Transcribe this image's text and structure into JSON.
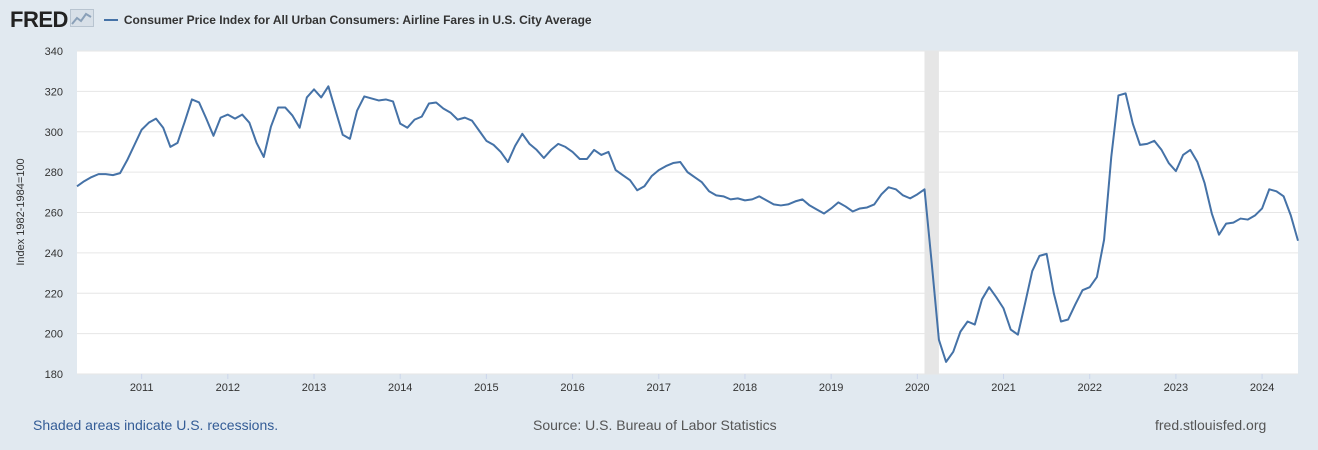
{
  "brand": {
    "logo_text": "FRED"
  },
  "legend": {
    "series_label": "Consumer Price Index for All Urban Consumers: Airline Fares in U.S. City Average"
  },
  "footer": {
    "recession_note": "Shaded areas indicate U.S. recessions.",
    "source": "Source: U.S. Bureau of Labor Statistics",
    "site": "fred.stlouisfed.org"
  },
  "colors": {
    "series": "#4572a7",
    "background": "#e1e9f0",
    "plot_bg": "#ffffff",
    "grid": "#e6e6e6",
    "recession": "#e6e6e6"
  },
  "chart_data": {
    "type": "line",
    "title": "Consumer Price Index for All Urban Consumers: Airline Fares in U.S. City Average",
    "ylabel": "Index 1982-1984=100",
    "xlabel": "",
    "ylim": [
      180,
      340
    ],
    "yticks": [
      180,
      200,
      220,
      240,
      260,
      280,
      300,
      320,
      340
    ],
    "xlim": [
      "2010-04",
      "2024-06"
    ],
    "xticks": [
      "2011",
      "2012",
      "2013",
      "2014",
      "2015",
      "2016",
      "2017",
      "2018",
      "2019",
      "2020",
      "2021",
      "2022",
      "2023",
      "2024"
    ],
    "grid": true,
    "legend_position": "top-left",
    "recessions": [
      {
        "start": "2020-02",
        "end": "2020-04"
      }
    ],
    "series": [
      {
        "name": "Consumer Price Index for All Urban Consumers: Airline Fares in U.S. City Average",
        "x_start": "2010-04",
        "frequency": "monthly",
        "values": [
          273,
          275.5,
          277.5,
          279,
          279,
          278.5,
          279.5,
          286,
          293.5,
          301,
          304.5,
          306.5,
          302,
          292.5,
          294.5,
          305,
          316,
          314.5,
          306.5,
          298,
          307,
          308.5,
          306.5,
          308.5,
          304.5,
          294.5,
          287.5,
          302.5,
          312,
          312,
          308,
          302,
          317,
          321,
          317,
          322.5,
          310.5,
          298.5,
          296.5,
          310.5,
          317.5,
          316.5,
          315.5,
          316,
          315,
          304,
          302,
          306,
          307.5,
          314,
          314.5,
          311.5,
          309.5,
          306,
          307,
          305.5,
          300.5,
          295.5,
          293.5,
          290,
          285,
          293,
          299,
          294,
          291,
          287,
          291,
          294,
          292.5,
          290,
          286.5,
          286.5,
          291,
          288.5,
          290,
          281,
          278.5,
          276,
          271,
          273,
          278,
          281,
          283,
          284.5,
          285,
          280,
          277.5,
          275,
          270.5,
          268.5,
          268,
          266.5,
          267,
          266,
          266.5,
          268,
          266,
          264,
          263.5,
          264,
          265.5,
          266.5,
          263.5,
          261.5,
          259.5,
          262,
          265,
          263,
          260.5,
          262,
          262.5,
          264,
          269,
          272.5,
          271.5,
          268.5,
          267,
          269,
          271.5,
          235,
          197,
          186,
          191,
          201,
          206,
          204.5,
          217,
          223,
          218,
          212.5,
          202,
          199.5,
          215,
          231,
          238.5,
          239.5,
          220,
          206,
          207,
          214.5,
          221.5,
          223,
          228,
          246.5,
          287.5,
          318,
          319,
          304,
          293.5,
          294,
          295.5,
          291,
          284.5,
          280.5,
          288.5,
          291,
          285,
          274.5,
          259.5,
          249,
          254.5,
          255,
          257,
          256.5,
          258.5,
          262,
          271.5,
          270.5,
          268,
          258.5,
          246
        ]
      }
    ]
  }
}
